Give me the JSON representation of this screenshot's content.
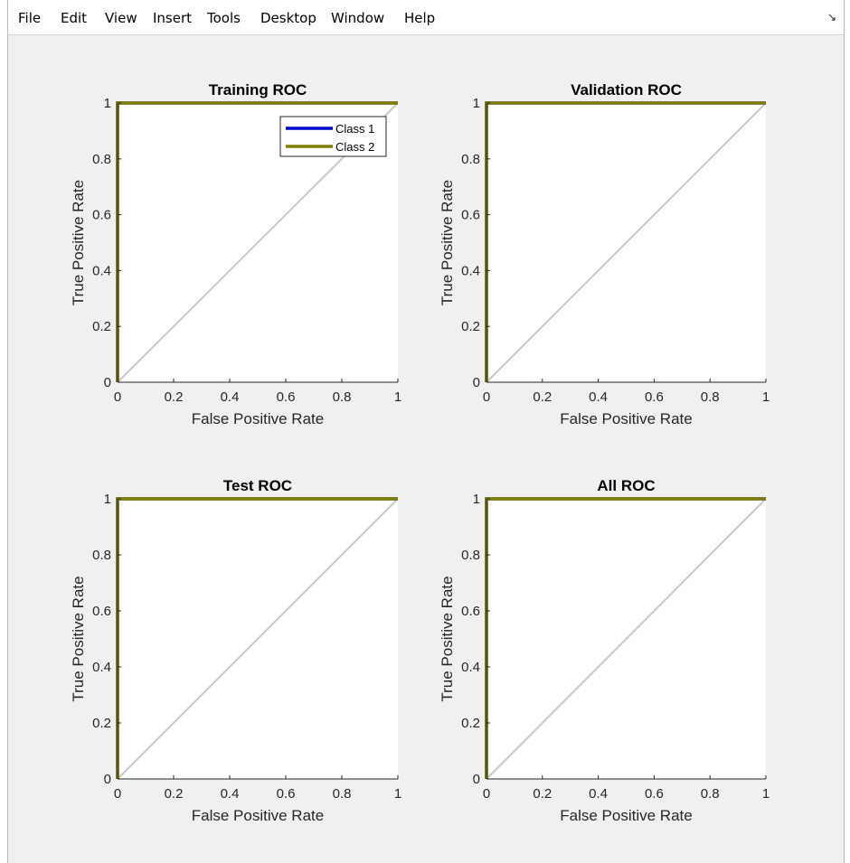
{
  "menubar": {
    "items": [
      "File",
      "Edit",
      "View",
      "Insert",
      "Tools",
      "Desktop",
      "Window",
      "Help"
    ],
    "dock_icon": "dock-arrow-icon"
  },
  "colors": {
    "class1": "#0000cc",
    "class2": "#808000",
    "diagonal": "#c8c8c8",
    "axes_bg": "#ffffff",
    "figure_bg": "#f0f0f0"
  },
  "chart_data": [
    {
      "type": "line",
      "title": "Training ROC",
      "xlabel": "False Positive Rate",
      "ylabel": "True Positive Rate",
      "xlim": [
        0,
        1
      ],
      "ylim": [
        0,
        1
      ],
      "xticks": [
        "0",
        "0.2",
        "0.4",
        "0.6",
        "0.8",
        "1"
      ],
      "yticks": [
        "0",
        "0.2",
        "0.4",
        "0.6",
        "0.8",
        "1"
      ],
      "legend": {
        "position": "top-right",
        "entries": [
          "Class 1",
          "Class 2"
        ]
      },
      "series": [
        {
          "name": "Class 1",
          "x": [
            0,
            0,
            1
          ],
          "y": [
            0,
            1,
            1
          ]
        },
        {
          "name": "Class 2",
          "x": [
            0,
            0,
            1
          ],
          "y": [
            0,
            1,
            1
          ]
        }
      ],
      "reference": {
        "x": [
          0,
          1
        ],
        "y": [
          0,
          1
        ]
      }
    },
    {
      "type": "line",
      "title": "Validation ROC",
      "xlabel": "False Positive Rate",
      "ylabel": "True Positive Rate",
      "xlim": [
        0,
        1
      ],
      "ylim": [
        0,
        1
      ],
      "xticks": [
        "0",
        "0.2",
        "0.4",
        "0.6",
        "0.8",
        "1"
      ],
      "yticks": [
        "0",
        "0.2",
        "0.4",
        "0.6",
        "0.8",
        "1"
      ],
      "series": [
        {
          "x": [
            0,
            0,
            1
          ],
          "y": [
            0,
            1,
            1
          ]
        },
        {
          "x": [
            0,
            0,
            1
          ],
          "y": [
            0,
            1,
            1
          ]
        }
      ],
      "reference": {
        "x": [
          0,
          1
        ],
        "y": [
          0,
          1
        ]
      }
    },
    {
      "type": "line",
      "title": "Test ROC",
      "xlabel": "False Positive Rate",
      "ylabel": "True Positive Rate",
      "xlim": [
        0,
        1
      ],
      "ylim": [
        0,
        1
      ],
      "xticks": [
        "0",
        "0.2",
        "0.4",
        "0.6",
        "0.8",
        "1"
      ],
      "yticks": [
        "0",
        "0.2",
        "0.4",
        "0.6",
        "0.8",
        "1"
      ],
      "series": [
        {
          "x": [
            0,
            0,
            1
          ],
          "y": [
            0,
            1,
            1
          ]
        },
        {
          "x": [
            0,
            0,
            1
          ],
          "y": [
            0,
            1,
            1
          ]
        }
      ],
      "reference": {
        "x": [
          0,
          1
        ],
        "y": [
          0,
          1
        ]
      }
    },
    {
      "type": "line",
      "title": "All ROC",
      "xlabel": "False Positive Rate",
      "ylabel": "True Positive Rate",
      "xlim": [
        0,
        1
      ],
      "ylim": [
        0,
        1
      ],
      "xticks": [
        "0",
        "0.2",
        "0.4",
        "0.6",
        "0.8",
        "1"
      ],
      "yticks": [
        "0",
        "0.2",
        "0.4",
        "0.6",
        "0.8",
        "1"
      ],
      "series": [
        {
          "x": [
            0,
            0,
            1
          ],
          "y": [
            0,
            1,
            1
          ]
        },
        {
          "x": [
            0,
            0,
            1
          ],
          "y": [
            0,
            1,
            1
          ]
        }
      ],
      "reference": {
        "x": [
          0,
          1
        ],
        "y": [
          0,
          1
        ]
      }
    }
  ]
}
